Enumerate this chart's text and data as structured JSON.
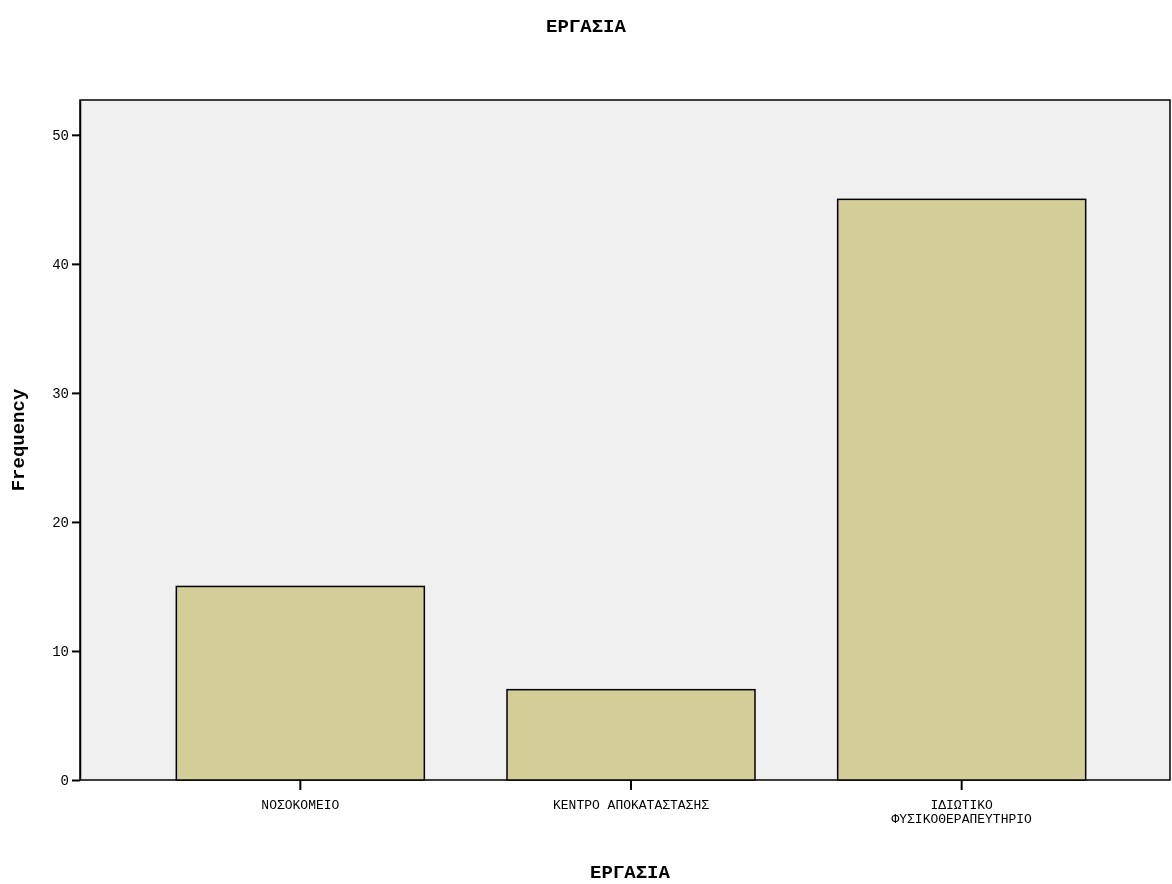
{
  "chart_data": {
    "type": "bar",
    "title": "ΕΡΓΑΣΙΑ",
    "xlabel": "ΕΡΓΑΣΙΑ",
    "ylabel": "Frequency",
    "categories": [
      "ΝΟΣΟΚΟΜΕΙΟ",
      "ΚΕΝΤΡΟ ΑΠΟΚΑΤΑΣΤΑΣΗΣ",
      "ΙΔΙΩΤΙΚΟ ΦΥΣΙΚΟΘΕΡΑΠΕΥΤΗΡΙΟ"
    ],
    "values": [
      15,
      7,
      45
    ],
    "color": "#d3ce97",
    "ylim": [
      0,
      52.7
    ],
    "yticks": [
      0,
      10,
      20,
      30,
      40,
      50
    ],
    "grid": false
  }
}
